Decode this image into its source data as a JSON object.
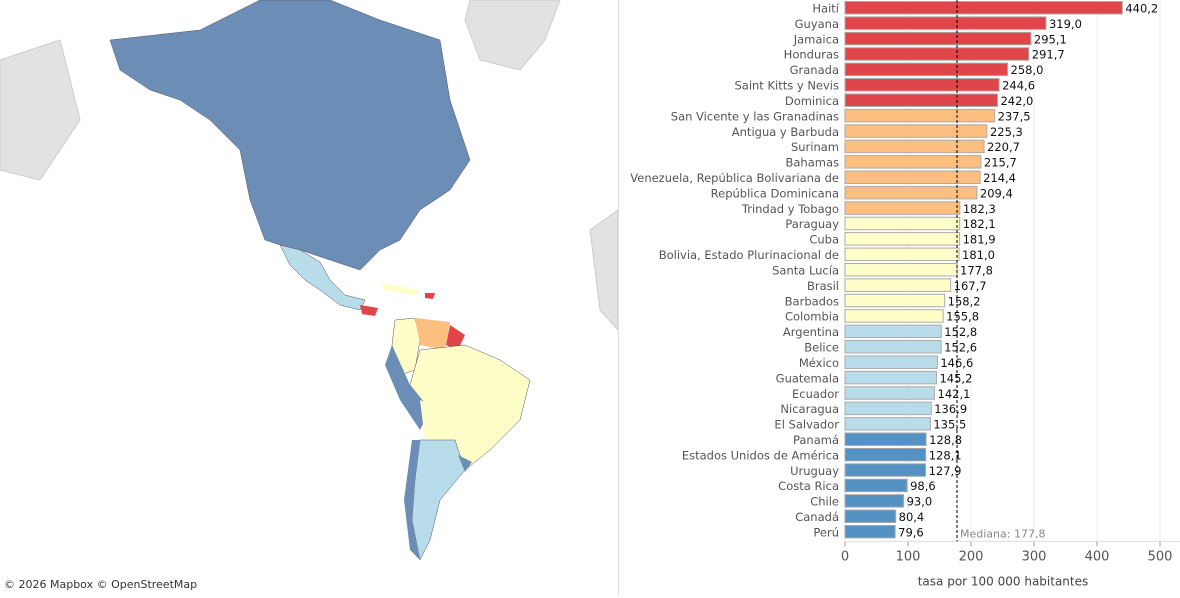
{
  "map": {
    "attribution": "© 2026 Mapbox  © OpenStreetMap"
  },
  "colors": {
    "red": "#e0454a",
    "orange": "#fdbf7f",
    "yellow": "#fefec8",
    "lightblue": "#b9dcea",
    "blue": "#5592c4",
    "map_north": "#6b8db6",
    "land_other": "#e2e2e2"
  },
  "chart_data": {
    "type": "bar",
    "orientation": "horizontal",
    "xlabel": "tasa por 100 000 habitantes",
    "xlim": [
      0,
      500
    ],
    "xticks": [
      "0",
      "100",
      "200",
      "300",
      "400",
      "500"
    ],
    "median": {
      "value": 177.8,
      "label": "Mediana: 177,8"
    },
    "categories": [
      "Haití",
      "Guyana",
      "Jamaica",
      "Honduras",
      "Granada",
      "Saint Kitts y Nevis",
      "Dominica",
      "San Vicente y las Granadinas",
      "Antigua y Barbuda",
      "Surinam",
      "Bahamas",
      "Venezuela, República Bolivariana de",
      "República Dominicana",
      "Trindad y Tobago",
      "Paraguay",
      "Cuba",
      "Bolivia, Estado Plurinacional de",
      "Santa Lucía",
      "Brasil",
      "Barbados",
      "Colombia",
      "Argentina",
      "Belice",
      "México",
      "Guatemala",
      "Ecuador",
      "Nicaragua",
      "El Salvador",
      "Panamá",
      "Estados Unidos de América",
      "Uruguay",
      "Costa Rica",
      "Chile",
      "Canadá",
      "Perú"
    ],
    "values": [
      440.2,
      319.0,
      295.1,
      291.7,
      258.0,
      244.6,
      242.0,
      237.5,
      225.3,
      220.7,
      215.7,
      214.4,
      209.4,
      182.3,
      182.1,
      181.9,
      181.0,
      177.8,
      167.7,
      158.2,
      155.8,
      152.8,
      152.6,
      146.6,
      145.2,
      142.1,
      136.9,
      135.5,
      128.8,
      128.1,
      127.9,
      98.6,
      93.0,
      80.4,
      79.6
    ],
    "value_labels": [
      "440,2",
      "319,0",
      "295,1",
      "291,7",
      "258,0",
      "244,6",
      "242,0",
      "237,5",
      "225,3",
      "220,7",
      "215,7",
      "214,4",
      "209,4",
      "182,3",
      "182,1",
      "181,9",
      "181,0",
      "177,8",
      "167,7",
      "158,2",
      "155,8",
      "152,8",
      "152,6",
      "146,6",
      "145,2",
      "142,1",
      "136,9",
      "135,5",
      "128,8",
      "128,1",
      "127,9",
      "98,6",
      "93,0",
      "80,4",
      "79,6"
    ],
    "groups": [
      "red",
      "red",
      "red",
      "red",
      "red",
      "red",
      "red",
      "orange",
      "orange",
      "orange",
      "orange",
      "orange",
      "orange",
      "orange",
      "yellow",
      "yellow",
      "yellow",
      "yellow",
      "yellow",
      "yellow",
      "yellow",
      "lightblue",
      "lightblue",
      "lightblue",
      "lightblue",
      "lightblue",
      "lightblue",
      "lightblue",
      "blue",
      "blue",
      "blue",
      "blue",
      "blue",
      "blue",
      "blue"
    ]
  }
}
